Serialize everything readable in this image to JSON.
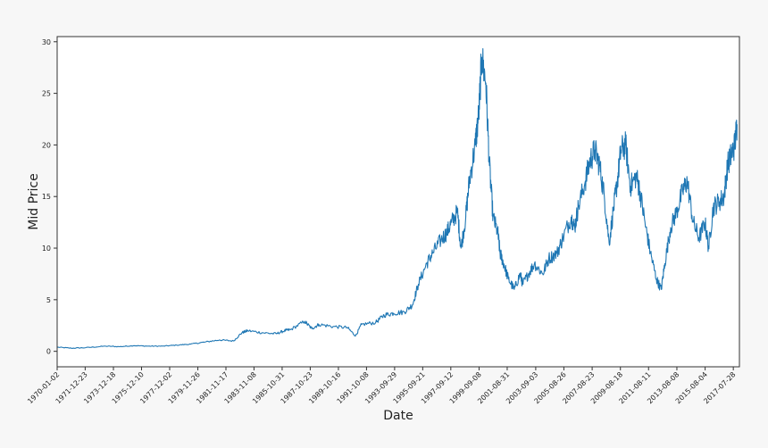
{
  "chart_data": {
    "type": "line",
    "xlabel": "Date",
    "ylabel": "Mid Price",
    "x_range": [
      "1970-01-02",
      "2018-01-01"
    ],
    "ylim": [
      -1.5,
      30.5
    ],
    "grid": false,
    "legend": "none",
    "line_color": "#1f77b4",
    "x_ticks": [
      "1970-01-02",
      "1971-12-23",
      "1973-12-18",
      "1975-12-10",
      "1977-12-02",
      "1979-11-26",
      "1981-11-17",
      "1983-11-08",
      "1985-10-31",
      "1987-10-23",
      "1989-10-16",
      "1991-10-08",
      "1993-09-29",
      "1995-09-21",
      "1997-09-12",
      "1999-09-08",
      "2001-08-31",
      "2003-09-03",
      "2005-08-26",
      "2007-08-23",
      "2009-08-18",
      "2011-08-11",
      "2013-08-08",
      "2015-08-04",
      "2017-07-28"
    ],
    "y_ticks": [
      0,
      5,
      10,
      15,
      20,
      25,
      30
    ],
    "series": [
      {
        "x": [
          "1970-01-02",
          "1971-01-01",
          "1972-01-01",
          "1973-06-01",
          "1974-06-01",
          "1975-06-01",
          "1976-06-01",
          "1977-06-01",
          "1978-06-01",
          "1979-06-01",
          "1980-06-01",
          "1981-06-01",
          "1982-06-01",
          "1983-01-01",
          "1983-06-01",
          "1984-06-01",
          "1985-06-01",
          "1986-01-01",
          "1986-06-01",
          "1987-06-01",
          "1987-12-01",
          "1988-06-01",
          "1989-06-01",
          "1990-06-01",
          "1991-01-01",
          "1991-06-01",
          "1992-06-01",
          "1993-01-01",
          "1993-09-01",
          "1994-06-01",
          "1995-01-01",
          "1995-06-01",
          "1996-01-01",
          "1996-06-01",
          "1997-01-01",
          "1997-06-01",
          "1997-10-01",
          "1998-03-01",
          "1998-06-01",
          "1998-10-01",
          "1999-01-01",
          "1999-06-01",
          "1999-09-01",
          "1999-11-15",
          "2000-03-01",
          "2000-06-01",
          "2000-09-01",
          "2001-01-01",
          "2001-03-01",
          "2001-06-01",
          "2001-10-01",
          "2002-03-01",
          "2002-08-01",
          "2002-10-01",
          "2003-03-01",
          "2003-08-01",
          "2004-03-01",
          "2004-08-01",
          "2005-03-01",
          "2005-08-01",
          "2006-03-01",
          "2006-06-01",
          "2006-09-01",
          "2007-03-01",
          "2007-07-01",
          "2007-11-01",
          "2008-03-01",
          "2008-07-01",
          "2008-11-01",
          "2009-03-01",
          "2009-06-01",
          "2009-09-01",
          "2010-01-01",
          "2010-05-01",
          "2010-10-01",
          "2011-01-01",
          "2011-06-01",
          "2011-10-01",
          "2012-03-01",
          "2012-07-01",
          "2012-10-01",
          "2013-03-01",
          "2013-08-01",
          "2014-01-01",
          "2014-05-01",
          "2014-10-01",
          "2015-03-01",
          "2015-08-01",
          "2015-11-01",
          "2016-03-01",
          "2016-08-01",
          "2016-12-01",
          "2017-03-01",
          "2017-06-01",
          "2017-09-01",
          "2017-11-01"
        ],
        "values": [
          0.4,
          0.3,
          0.35,
          0.5,
          0.45,
          0.55,
          0.5,
          0.5,
          0.6,
          0.7,
          0.9,
          1.1,
          1.0,
          1.8,
          2.0,
          1.8,
          1.7,
          2.0,
          2.1,
          2.9,
          2.2,
          2.6,
          2.4,
          2.3,
          1.5,
          2.6,
          2.8,
          3.5,
          3.7,
          3.8,
          4.5,
          6.5,
          8.5,
          9.5,
          10.8,
          11.5,
          12.5,
          13.5,
          10.0,
          13.0,
          16.5,
          20.0,
          23.0,
          28.5,
          26.0,
          18.0,
          13.0,
          11.5,
          9.5,
          8.5,
          7.0,
          6.0,
          7.5,
          6.5,
          7.5,
          8.5,
          7.5,
          9.0,
          9.5,
          11.0,
          13.0,
          12.0,
          14.0,
          16.5,
          18.5,
          19.5,
          18.0,
          15.0,
          10.5,
          14.0,
          16.5,
          19.5,
          20.0,
          16.0,
          17.0,
          15.5,
          12.0,
          9.5,
          7.0,
          6.0,
          8.5,
          12.0,
          13.5,
          15.5,
          16.5,
          12.5,
          11.0,
          12.5,
          10.0,
          14.0,
          14.5,
          15.0,
          18.0,
          19.0,
          20.0,
          22.0
        ]
      }
    ]
  }
}
